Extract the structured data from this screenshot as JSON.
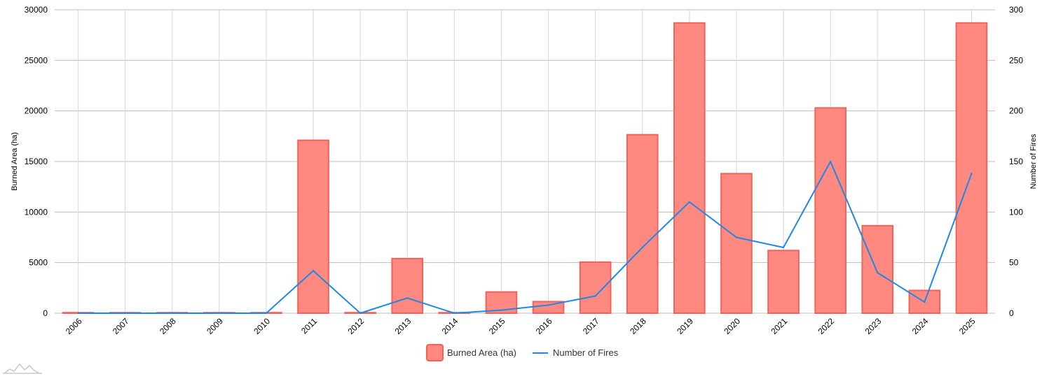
{
  "chart_data": {
    "type": "bar",
    "categories": [
      "2006",
      "2007",
      "2008",
      "2009",
      "2010",
      "2011",
      "2012",
      "2013",
      "2014",
      "2015",
      "2016",
      "2017",
      "2018",
      "2019",
      "2020",
      "2021",
      "2022",
      "2023",
      "2024",
      "2025"
    ],
    "series": [
      {
        "name": "Burned Area (ha)",
        "type": "bar",
        "axis": "left",
        "color": "#ff8880",
        "border_color": "#f0635a",
        "values": [
          0,
          0,
          0,
          0,
          0,
          17100,
          0,
          5400,
          50,
          2100,
          1150,
          5050,
          17650,
          28700,
          13800,
          6200,
          20300,
          8650,
          2250,
          28700
        ]
      },
      {
        "name": "Number of Fires",
        "type": "line",
        "axis": "right",
        "color": "#1e88e5",
        "values": [
          0,
          0,
          0,
          0,
          0,
          42,
          0,
          15,
          0,
          3,
          8,
          17,
          65,
          110,
          75,
          65,
          150,
          40,
          11,
          138
        ]
      }
    ],
    "y_left": {
      "label": "Burned Area (ha)",
      "min": 0,
      "max": 30000,
      "ticks": [
        0,
        5000,
        10000,
        15000,
        20000,
        25000,
        30000
      ]
    },
    "y_right": {
      "label": "Number of Fires",
      "min": 0,
      "max": 300,
      "ticks": [
        0,
        50,
        100,
        150,
        200,
        250,
        300
      ]
    },
    "grid": true,
    "legend_position": "bottom-center",
    "logo_icon": "amcharts-mountain-icon"
  }
}
